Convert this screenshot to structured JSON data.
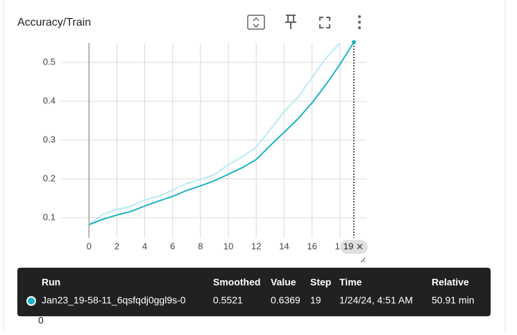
{
  "chart_data": {
    "type": "line",
    "title": "Accuracy/Train",
    "x": [
      0,
      1,
      2,
      3,
      4,
      5,
      6,
      7,
      8,
      9,
      10,
      11,
      12,
      13,
      14,
      15,
      16,
      17,
      18,
      19
    ],
    "series": [
      {
        "name": "Jan23_19-58-11_6qsfqdj0ggl9s-0",
        "color": "#1bb3c6",
        "values": [
          0.082,
          0.096,
          0.107,
          0.116,
          0.13,
          0.143,
          0.155,
          0.17,
          0.182,
          0.195,
          0.212,
          0.229,
          0.25,
          0.286,
          0.32,
          0.355,
          0.396,
          0.443,
          0.495,
          0.5521
        ]
      },
      {
        "color": "#b5ecf3",
        "values": [
          0.082,
          0.109,
          0.121,
          0.129,
          0.146,
          0.155,
          0.171,
          0.188,
          0.198,
          0.211,
          0.237,
          0.257,
          0.282,
          0.327,
          0.373,
          0.411,
          0.461,
          0.511,
          0.55,
          0.6369
        ]
      }
    ],
    "xlim": [
      -2,
      19.9
    ],
    "xticks": [
      0,
      2,
      4,
      6,
      8,
      10,
      12,
      14,
      16,
      18
    ],
    "ylim": [
      0.048,
      0.55
    ],
    "yticks": [
      0.1,
      0.2,
      0.3,
      0.4,
      0.5
    ],
    "grid": true
  },
  "tooltip": {
    "headers": [
      "Run",
      "Smoothed",
      "Value",
      "Step",
      "Time",
      "Relative"
    ],
    "time": "1/24/24, 4:51 AM",
    "relative": "50.91 min"
  },
  "footer_fragment": "0"
}
